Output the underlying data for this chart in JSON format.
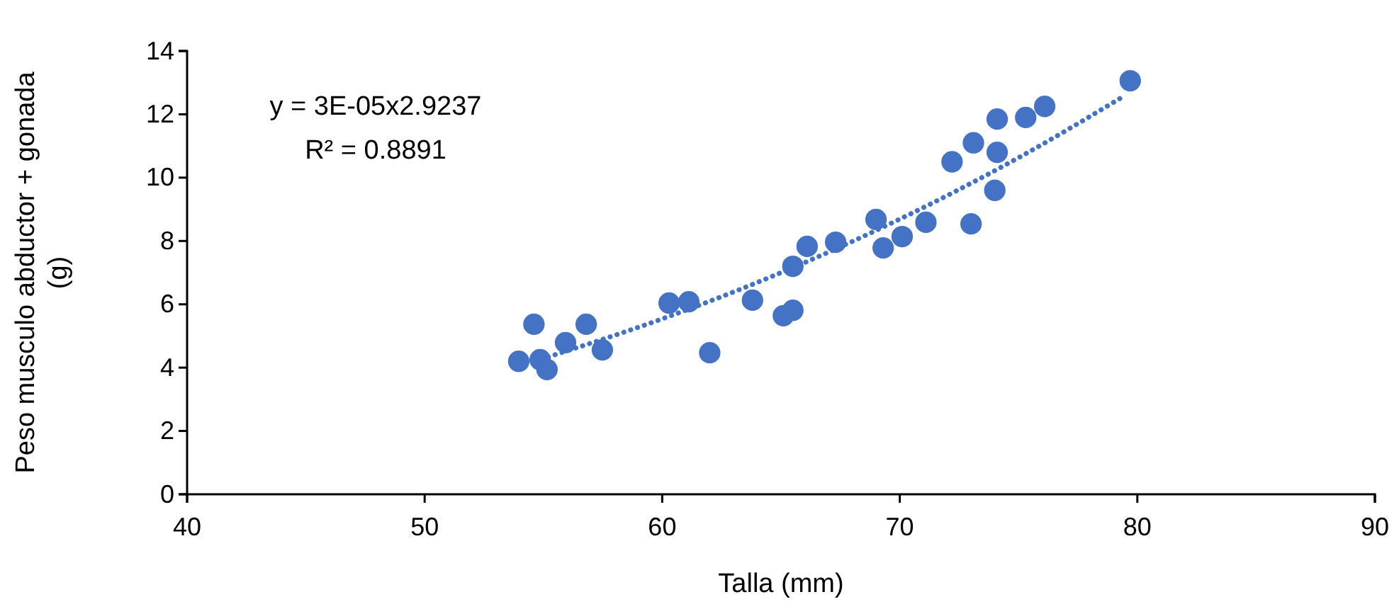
{
  "chart_data": {
    "type": "scatter",
    "xlabel": "Talla (mm)",
    "ylabel": "Peso musculo abductor + gonada (g)",
    "xlim": [
      40,
      90
    ],
    "xticks": [
      40,
      50,
      60,
      70,
      80,
      90
    ],
    "ylim": [
      0,
      14
    ],
    "yticks": [
      0,
      2,
      4,
      6,
      8,
      10,
      12,
      14
    ],
    "grid": false,
    "marker": "circle",
    "annotations": [
      "y = 3E-05x2.9237",
      "R² = 0.8891"
    ],
    "series": [
      {
        "color": "#4472c4",
        "x": [
          53.96,
          54.6,
          54.86,
          55.15,
          55.93,
          56.8,
          57.48,
          60.29,
          61.12,
          62.0,
          63.8,
          65.1,
          65.5,
          65.5,
          66.1,
          67.3,
          69.0,
          69.3,
          70.1,
          71.1,
          73.0,
          74.0,
          72.2,
          73.1,
          74.1,
          74.1,
          75.3,
          76.1,
          79.7
        ],
        "values": [
          4.2,
          5.37,
          4.25,
          3.94,
          4.79,
          5.37,
          4.56,
          6.04,
          6.08,
          4.47,
          6.13,
          5.64,
          5.81,
          7.2,
          7.83,
          7.96,
          8.68,
          7.78,
          8.14,
          8.59,
          8.54,
          9.6,
          10.5,
          11.1,
          10.8,
          11.85,
          11.9,
          12.25,
          13.06
        ]
      },
      {
        "type": "line",
        "color": "#4472c4",
        "line_style": "dotted",
        "marker": "none",
        "x": [
          55.2,
          60,
          65,
          70,
          75,
          79.4
        ],
        "values": [
          4.34,
          5.54,
          7.0,
          8.69,
          10.63,
          12.56
        ]
      }
    ]
  }
}
